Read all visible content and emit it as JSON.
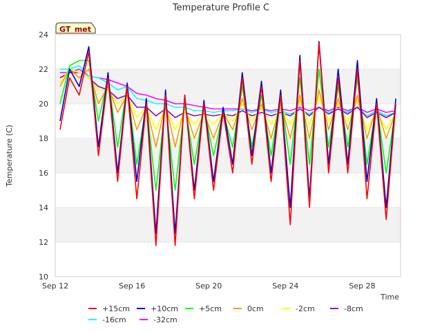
{
  "chart_data": {
    "type": "line",
    "title": "Temperature Profile C",
    "xlabel": "Time",
    "ylabel": "Temperature (C)",
    "badge": "GT_met",
    "ylim": [
      10,
      24
    ],
    "yticks": [
      10,
      12,
      14,
      16,
      18,
      20,
      22,
      24
    ],
    "xlim": [
      "2023-09-12",
      "2023-09-30"
    ],
    "xticks": [
      {
        "date": "2023-09-12",
        "label": "Sep 12"
      },
      {
        "date": "2023-09-16",
        "label": "Sep 16"
      },
      {
        "date": "2023-09-20",
        "label": "Sep 20"
      },
      {
        "date": "2023-09-24",
        "label": "Sep 24"
      },
      {
        "date": "2023-09-28",
        "label": "Sep 28"
      }
    ],
    "grid": "horizontal bands",
    "legend_position": "bottom",
    "x": [
      "2023-09-12 06:00",
      "2023-09-12 18:00",
      "2023-09-13 06:00",
      "2023-09-13 18:00",
      "2023-09-14 06:00",
      "2023-09-14 18:00",
      "2023-09-15 06:00",
      "2023-09-15 18:00",
      "2023-09-16 06:00",
      "2023-09-16 18:00",
      "2023-09-17 06:00",
      "2023-09-17 18:00",
      "2023-09-18 06:00",
      "2023-09-18 18:00",
      "2023-09-19 06:00",
      "2023-09-19 18:00",
      "2023-09-20 06:00",
      "2023-09-20 18:00",
      "2023-09-21 06:00",
      "2023-09-21 18:00",
      "2023-09-22 06:00",
      "2023-09-22 18:00",
      "2023-09-23 06:00",
      "2023-09-23 18:00",
      "2023-09-24 06:00",
      "2023-09-24 18:00",
      "2023-09-25 06:00",
      "2023-09-25 18:00",
      "2023-09-26 06:00",
      "2023-09-26 18:00",
      "2023-09-27 06:00",
      "2023-09-27 18:00",
      "2023-09-28 06:00",
      "2023-09-28 18:00",
      "2023-09-29 06:00",
      "2023-09-29 18:00"
    ],
    "series": [
      {
        "name": "+15cm",
        "color": "#ff0000",
        "values": [
          18.5,
          21.5,
          20.5,
          23.0,
          17.0,
          21.5,
          15.5,
          21.0,
          14.5,
          20.0,
          11.8,
          20.5,
          11.8,
          20.5,
          14.5,
          20.0,
          15.0,
          19.5,
          16.0,
          21.5,
          16.5,
          21.0,
          15.5,
          20.5,
          13.0,
          22.5,
          14.0,
          23.5,
          16.0,
          21.5,
          16.0,
          22.0,
          14.5,
          20.0,
          13.3,
          20.0
        ]
      },
      {
        "name": "+10cm",
        "color": "#0000cc",
        "values": [
          19.0,
          22.0,
          21.0,
          23.3,
          17.5,
          21.8,
          16.0,
          21.2,
          15.5,
          20.3,
          12.5,
          20.8,
          12.5,
          20.5,
          15.0,
          20.2,
          15.5,
          19.8,
          16.5,
          21.8,
          17.0,
          21.3,
          16.0,
          20.8,
          14.0,
          22.8,
          14.5,
          23.6,
          16.5,
          22.0,
          16.5,
          22.5,
          15.5,
          20.3,
          14.0,
          20.3
        ]
      },
      {
        "name": "+5cm",
        "color": "#00ff00",
        "values": [
          20.0,
          22.2,
          22.5,
          22.5,
          19.0,
          21.5,
          17.5,
          21.0,
          16.5,
          20.0,
          15.0,
          20.0,
          15.0,
          20.0,
          16.5,
          19.8,
          17.0,
          19.5,
          17.5,
          21.0,
          17.5,
          20.5,
          17.0,
          20.5,
          16.5,
          21.5,
          16.5,
          22.0,
          17.5,
          21.0,
          17.5,
          21.5,
          16.5,
          20.0,
          16.0,
          19.8
        ]
      },
      {
        "name": "0cm",
        "color": "#ff9900",
        "values": [
          21.0,
          22.0,
          21.5,
          22.0,
          20.0,
          21.0,
          19.5,
          20.5,
          18.5,
          19.8,
          17.5,
          20.0,
          17.5,
          19.8,
          18.0,
          19.5,
          18.0,
          19.5,
          18.5,
          20.3,
          18.5,
          20.0,
          18.0,
          20.0,
          18.0,
          20.5,
          18.0,
          20.8,
          18.5,
          20.3,
          18.5,
          20.5,
          18.0,
          19.8,
          18.0,
          19.5
        ]
      },
      {
        "name": "-2cm",
        "color": "#ffff00",
        "values": [
          21.2,
          22.0,
          21.8,
          21.5,
          20.8,
          20.8,
          20.0,
          20.5,
          19.2,
          19.8,
          18.5,
          19.8,
          18.5,
          19.5,
          18.8,
          19.5,
          18.8,
          19.5,
          19.0,
          20.0,
          19.0,
          19.8,
          18.8,
          19.8,
          18.8,
          20.2,
          18.8,
          20.4,
          19.0,
          20.0,
          19.0,
          20.2,
          18.5,
          19.6,
          18.5,
          19.5
        ]
      },
      {
        "name": "-8cm",
        "color": "#9900cc",
        "values": [
          21.5,
          21.8,
          21.8,
          21.5,
          21.0,
          20.8,
          20.3,
          20.5,
          19.8,
          19.8,
          19.3,
          19.7,
          19.2,
          19.5,
          19.3,
          19.4,
          19.3,
          19.4,
          19.3,
          19.6,
          19.3,
          19.5,
          19.3,
          19.5,
          19.3,
          19.7,
          19.3,
          19.8,
          19.4,
          19.7,
          19.4,
          19.8,
          19.2,
          19.5,
          19.2,
          19.5
        ]
      },
      {
        "name": "-16cm",
        "color": "#00ffff",
        "values": [
          22.0,
          22.0,
          22.2,
          21.6,
          21.5,
          21.2,
          20.8,
          21.0,
          20.3,
          20.2,
          20.0,
          20.0,
          19.8,
          19.8,
          19.6,
          19.6,
          19.5,
          19.6,
          19.6,
          19.7,
          19.5,
          19.7,
          19.5,
          19.6,
          19.4,
          19.7,
          19.4,
          19.8,
          19.5,
          19.7,
          19.5,
          19.8,
          19.3,
          19.6,
          19.3,
          19.5
        ]
      },
      {
        "name": "-32cm",
        "color": "#ff00ff",
        "values": [
          21.8,
          21.8,
          22.0,
          21.6,
          21.5,
          21.4,
          21.2,
          21.0,
          20.6,
          20.5,
          20.3,
          20.2,
          20.0,
          20.0,
          19.9,
          19.8,
          19.7,
          19.7,
          19.7,
          19.7,
          19.6,
          19.7,
          19.6,
          19.7,
          19.6,
          19.8,
          19.6,
          19.8,
          19.6,
          19.8,
          19.6,
          19.8,
          19.5,
          19.7,
          19.5,
          19.6
        ]
      }
    ]
  }
}
